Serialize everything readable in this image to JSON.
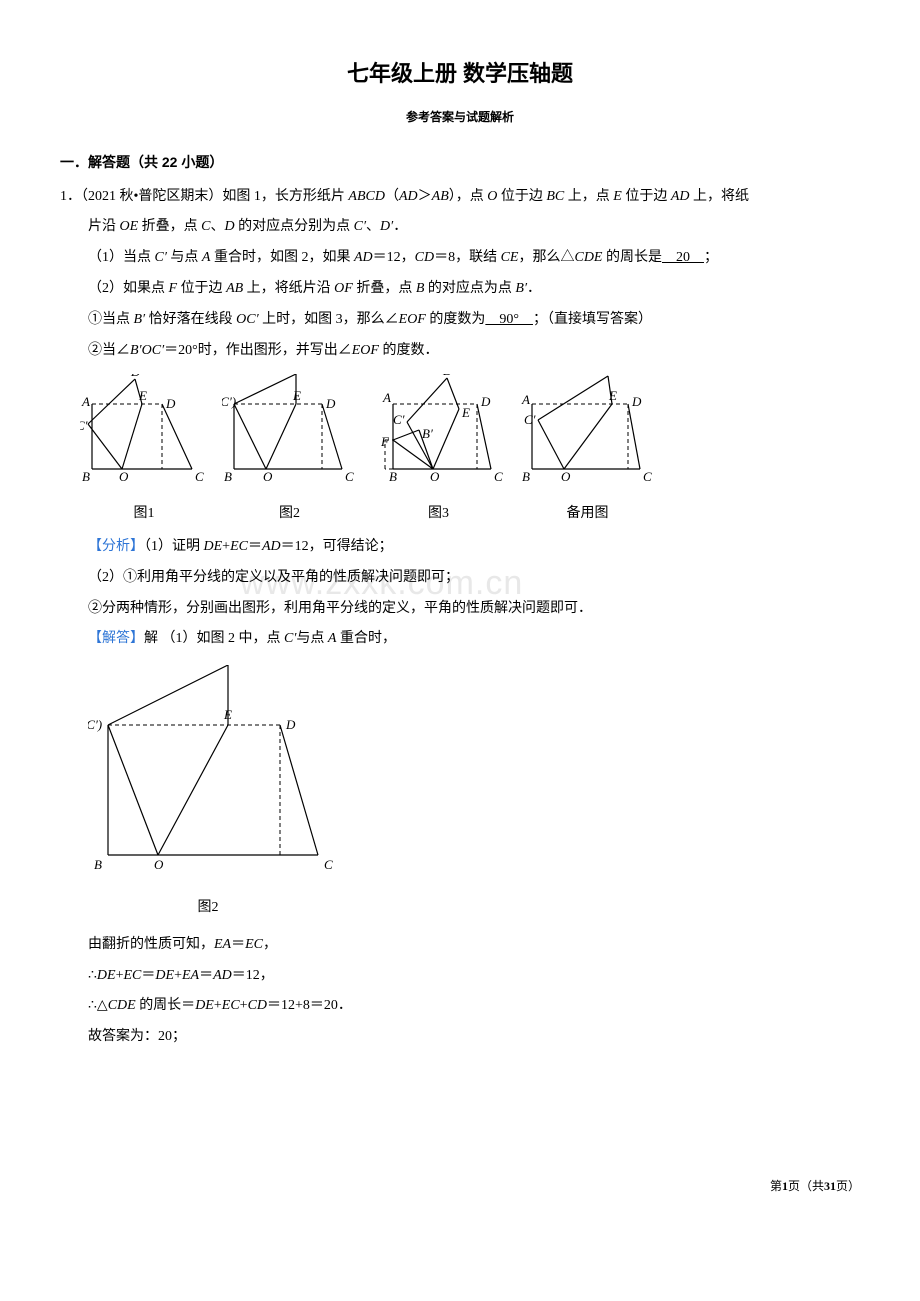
{
  "title": "七年级上册 数学压轴题",
  "subtitle": "参考答案与试题解析",
  "section_header": "一．解答题（共 22 小题）",
  "problem": {
    "number": "1．",
    "source": "（2021 秋•普陀区期末）",
    "stem_a": "如图 1，长方形纸片 ",
    "stem_abcd": "ABCD",
    "stem_b": "（",
    "stem_ad": "AD",
    "stem_gt": "＞",
    "stem_ab": "AB",
    "stem_c": "），点 ",
    "stem_o": "O",
    "stem_d": " 位于边 ",
    "stem_bc": "BC",
    "stem_e": " 上，点 ",
    "stem_E": "E",
    "stem_f": " 位于边 ",
    "stem_AD": "AD",
    "stem_g": " 上，将纸",
    "line2_a": "片沿 ",
    "line2_oe": "OE",
    "line2_b": " 折叠，点 ",
    "line2_c": "C",
    "line2_d": "、",
    "line2_D": "D",
    "line2_e": " 的对应点分别为点 ",
    "line2_cp": "C′",
    "line2_f": "、",
    "line2_dp": "D′",
    "line2_g": "．",
    "q1_a": "（1）当点 ",
    "q1_cp": "C′",
    "q1_b": " 与点 ",
    "q1_A": "A",
    "q1_c": " 重合时，如图 2，如果 ",
    "q1_ad": "AD",
    "q1_d": "＝12，",
    "q1_cd": "CD",
    "q1_e": "＝8，联结 ",
    "q1_ce": "CE",
    "q1_f": "，那么△",
    "q1_cde": "CDE",
    "q1_g": " 的周长是",
    "q1_blank": "　20　",
    "q1_h": "；",
    "q2_a": "（2）如果点 ",
    "q2_F": "F",
    "q2_b": " 位于边 ",
    "q2_ab": "AB",
    "q2_c": " 上，将纸片沿 ",
    "q2_of": "OF",
    "q2_d": " 折叠，点 ",
    "q2_B": "B",
    "q2_e": " 的对应点为点 ",
    "q2_bp": "B′",
    "q2_f": "．",
    "q21_a": "①当点 ",
    "q21_bp": "B′",
    "q21_b": " 恰好落在线段 ",
    "q21_ocp": "OC′",
    "q21_c": " 上时，如图 3，那么∠",
    "q21_eof": "EOF",
    "q21_d": " 的度数为",
    "q21_blank": "　90°　",
    "q21_e": "；（直接填写答案）",
    "q22_a": "②当∠",
    "q22_bp": "B′",
    "q22_ocp": "OC′",
    "q22_b": "＝20°时，作出图形，并写出∠",
    "q22_eof": "EOF",
    "q22_c": " 的度数．"
  },
  "fig_captions": {
    "f1": "图1",
    "f2": "图2",
    "f3": "图3",
    "f4": "备用图"
  },
  "analysis": {
    "label": "【分析】",
    "l1_a": "（1）证明 ",
    "l1_de": "DE",
    "l1_plus": "+",
    "l1_ec": "EC",
    "l1_eq": "＝",
    "l1_ad": "AD",
    "l1_b": "＝12，可得结论；",
    "l2": "（2）①利用角平分线的定义以及平角的性质解决问题即可；",
    "l3": "②分两种情形，分别画出图形，利用角平分线的定义，平角的性质解决问题即可．"
  },
  "answer": {
    "label": "【解答】",
    "l1_a": "解 （1）如图 2 中，点 ",
    "l1_cp": "C′",
    "l1_b": "与点 ",
    "l1_A": "A",
    "l1_c": " 重合时，"
  },
  "solution": {
    "s1_a": "由翻折的性质可知，",
    "s1_ea": "EA",
    "s1_eq": "＝",
    "s1_ec": "EC",
    "s1_b": "，",
    "s2_a": "∴",
    "s2_de": "DE",
    "s2_p": "+",
    "s2_ec": "EC",
    "s2_eq": "＝",
    "s2_de2": "DE",
    "s2_p2": "+",
    "s2_ea": "EA",
    "s2_eq2": "＝",
    "s2_ad": "AD",
    "s2_b": "＝12，",
    "s3_a": "∴△",
    "s3_cde": "CDE",
    "s3_b": " 的周长＝",
    "s3_de": "DE",
    "s3_p": "+",
    "s3_ec": "EC",
    "s3_p2": "+",
    "s3_cd": "CD",
    "s3_c": "＝12+8＝20．",
    "s4": "故答案为：20；"
  },
  "footer": {
    "left": "第",
    "page": "1",
    "mid": "页（共",
    "total": "31",
    "right": "页）"
  },
  "watermark": "www.zxxk.com.cn",
  "colors": {
    "analysis": "#2e75d6",
    "text": "#000000",
    "bg": "#ffffff",
    "wm": "#e8e8e8"
  },
  "labels": {
    "A": "A",
    "B": "B",
    "C": "C",
    "D": "D",
    "E": "E",
    "O": "O",
    "F": "F",
    "Dp": "D′",
    "Cp": "C′",
    "Bp": "B′",
    "ACp": "A(C′)"
  },
  "fig1": {
    "B": [
      12,
      95
    ],
    "O": [
      42,
      95
    ],
    "C": [
      112,
      95
    ],
    "A": [
      12,
      30
    ],
    "E": [
      62,
      30
    ],
    "D": [
      82,
      30
    ],
    "Cp": [
      8,
      50
    ],
    "Dp": [
      55,
      5
    ],
    "edges_solid": [
      [
        12,
        95,
        112,
        95
      ],
      [
        12,
        30,
        12,
        95
      ],
      [
        42,
        95,
        62,
        30
      ],
      [
        42,
        95,
        8,
        50
      ],
      [
        8,
        50,
        55,
        5
      ],
      [
        55,
        5,
        62,
        30
      ],
      [
        112,
        95,
        82,
        30
      ]
    ],
    "edges_dash": [
      [
        12,
        30,
        82,
        30
      ],
      [
        82,
        30,
        82,
        95
      ]
    ]
  },
  "fig2": {
    "B": [
      12,
      95
    ],
    "O": [
      44,
      95
    ],
    "C": [
      120,
      95
    ],
    "A": [
      12,
      30
    ],
    "E": [
      74,
      30
    ],
    "D": [
      100,
      30
    ],
    "Dp": [
      74,
      0
    ],
    "edges_solid": [
      [
        12,
        95,
        120,
        95
      ],
      [
        12,
        30,
        12,
        95
      ],
      [
        44,
        95,
        74,
        30
      ],
      [
        44,
        95,
        12,
        30
      ],
      [
        12,
        30,
        74,
        0
      ],
      [
        74,
        0,
        74,
        30
      ],
      [
        120,
        95,
        100,
        30
      ]
    ],
    "edges_dash": [
      [
        12,
        30,
        100,
        30
      ],
      [
        100,
        30,
        100,
        95
      ]
    ]
  },
  "fig3": {
    "B": [
      22,
      95
    ],
    "O": [
      62,
      95
    ],
    "C": [
      120,
      95
    ],
    "A": [
      22,
      30
    ],
    "E": [
      88,
      35
    ],
    "D": [
      106,
      30
    ],
    "F": [
      22,
      66
    ],
    "Cp": [
      36,
      48
    ],
    "Bp": [
      48,
      56
    ],
    "Dp": [
      76,
      4
    ],
    "edges_solid": [
      [
        22,
        95,
        120,
        95
      ],
      [
        22,
        30,
        22,
        95
      ],
      [
        62,
        95,
        88,
        35
      ],
      [
        62,
        95,
        36,
        48
      ],
      [
        36,
        48,
        76,
        4
      ],
      [
        76,
        4,
        88,
        35
      ],
      [
        120,
        95,
        106,
        30
      ],
      [
        22,
        66,
        62,
        95
      ],
      [
        22,
        66,
        48,
        56
      ],
      [
        48,
        56,
        62,
        95
      ]
    ],
    "edges_dash": [
      [
        22,
        30,
        106,
        30
      ],
      [
        106,
        30,
        106,
        95
      ],
      [
        22,
        95,
        14,
        95
      ],
      [
        14,
        95,
        14,
        66
      ],
      [
        14,
        66,
        22,
        66
      ]
    ]
  },
  "fig4": {
    "B": [
      12,
      95
    ],
    "O": [
      44,
      95
    ],
    "C": [
      120,
      95
    ],
    "A": [
      12,
      30
    ],
    "E": [
      92,
      30
    ],
    "D": [
      108,
      30
    ],
    "Cp": [
      18,
      46
    ],
    "Dp": [
      88,
      2
    ],
    "edges_solid": [
      [
        12,
        95,
        120,
        95
      ],
      [
        12,
        30,
        12,
        95
      ],
      [
        44,
        95,
        92,
        30
      ],
      [
        44,
        95,
        18,
        46
      ],
      [
        18,
        46,
        88,
        2
      ],
      [
        88,
        2,
        92,
        30
      ],
      [
        120,
        95,
        108,
        30
      ]
    ],
    "edges_dash": [
      [
        12,
        30,
        108,
        30
      ],
      [
        108,
        30,
        108,
        95
      ]
    ]
  },
  "bigfig": {
    "B": [
      20,
      190
    ],
    "O": [
      70,
      190
    ],
    "C": [
      230,
      190
    ],
    "A": [
      20,
      60
    ],
    "E": [
      140,
      60
    ],
    "D": [
      192,
      60
    ],
    "Dp": [
      140,
      0
    ],
    "edges_solid": [
      [
        20,
        190,
        230,
        190
      ],
      [
        20,
        60,
        20,
        190
      ],
      [
        70,
        190,
        140,
        60
      ],
      [
        70,
        190,
        20,
        60
      ],
      [
        20,
        60,
        140,
        0
      ],
      [
        140,
        0,
        140,
        60
      ],
      [
        230,
        190,
        192,
        60
      ]
    ],
    "edges_dash": [
      [
        20,
        60,
        192,
        60
      ],
      [
        192,
        60,
        192,
        190
      ]
    ],
    "caption": "图2"
  }
}
